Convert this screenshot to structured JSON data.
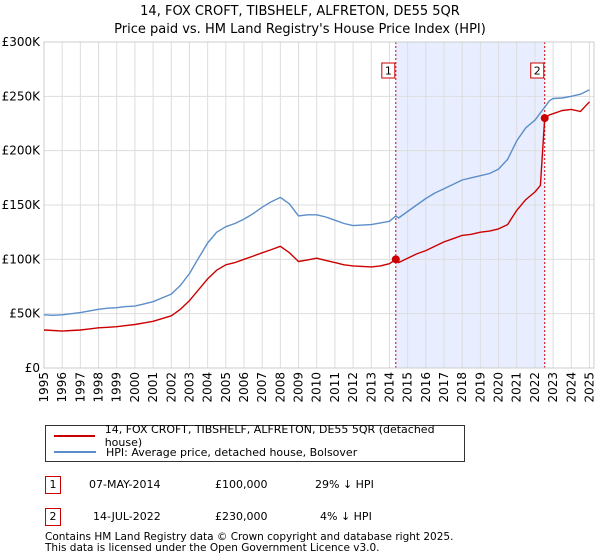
{
  "chart_data": {
    "type": "line",
    "title": "14, FOX CROFT, TIBSHELF, ALFRETON, DE55 5QR",
    "subtitle": "Price paid vs. HM Land Registry's House Price Index (HPI)",
    "xlabel": "",
    "ylabel": "",
    "xlim": [
      1995,
      2025.25
    ],
    "ylim": [
      0,
      300000
    ],
    "y_ticks": [
      0,
      50000,
      100000,
      150000,
      200000,
      250000,
      300000
    ],
    "y_tick_labels": [
      "£0",
      "£50K",
      "£100K",
      "£150K",
      "£200K",
      "£250K",
      "£300K"
    ],
    "x_ticks": [
      1995,
      1996,
      1997,
      1998,
      1999,
      2000,
      2001,
      2002,
      2003,
      2004,
      2005,
      2006,
      2007,
      2008,
      2009,
      2010,
      2011,
      2012,
      2013,
      2014,
      2015,
      2016,
      2017,
      2018,
      2019,
      2020,
      2021,
      2022,
      2023,
      2024,
      2025
    ],
    "x_tick_labels": [
      "1995",
      "1996",
      "1997",
      "1998",
      "1999",
      "2000",
      "2001",
      "2002",
      "2003",
      "2004",
      "2005",
      "2006",
      "2007",
      "2008",
      "2009",
      "2010",
      "2011",
      "2012",
      "2013",
      "2014",
      "2015",
      "2016",
      "2017",
      "2018",
      "2019",
      "2020",
      "2021",
      "2022",
      "2023",
      "2024",
      "2025"
    ],
    "grid": true,
    "shaded_period": [
      2014.35,
      2022.54
    ],
    "series": [
      {
        "name": "14, FOX CROFT, TIBSHELF, ALFRETON, DE55 5QR (detached house)",
        "color": "#cc0000",
        "x": [
          1995,
          1995.5,
          1996,
          1996.5,
          1997,
          1997.5,
          1998,
          1998.5,
          1999,
          1999.5,
          2000,
          2000.5,
          2001,
          2001.5,
          2002,
          2002.5,
          2003,
          2003.5,
          2004,
          2004.5,
          2005,
          2005.5,
          2006,
          2006.5,
          2007,
          2007.5,
          2008,
          2008.5,
          2009,
          2009.5,
          2010,
          2010.5,
          2011,
          2011.5,
          2012,
          2012.5,
          2013,
          2013.5,
          2014,
          2014.35,
          2014.5,
          2015,
          2015.5,
          2016,
          2016.5,
          2017,
          2017.5,
          2018,
          2018.5,
          2019,
          2019.5,
          2020,
          2020.5,
          2021,
          2021.5,
          2022,
          2022.3,
          2022.54,
          2022.8,
          2023,
          2023.5,
          2024,
          2024.5,
          2025
        ],
        "y": [
          35000,
          34500,
          34000,
          34500,
          35000,
          36000,
          37000,
          37500,
          38000,
          39000,
          40000,
          41500,
          43000,
          45500,
          48000,
          54000,
          62000,
          72000,
          82000,
          90000,
          95000,
          97000,
          100000,
          103000,
          106000,
          109000,
          112000,
          106000,
          98000,
          99500,
          101000,
          99000,
          97000,
          95000,
          94000,
          93500,
          93000,
          94000,
          96000,
          100000,
          97000,
          101000,
          105000,
          108000,
          112000,
          116000,
          119000,
          122000,
          123000,
          125000,
          126000,
          128000,
          132000,
          145000,
          155000,
          162000,
          168000,
          230000,
          233000,
          234000,
          237000,
          238000,
          236000,
          245000
        ]
      },
      {
        "name": "HPI: Average price, detached house, Bolsover",
        "color": "#5b8ec9",
        "x": [
          1995,
          1995.5,
          1996,
          1996.5,
          1997,
          1997.5,
          1998,
          1998.5,
          1999,
          1999.5,
          2000,
          2000.5,
          2001,
          2001.5,
          2002,
          2002.5,
          2003,
          2003.5,
          2004,
          2004.5,
          2005,
          2005.5,
          2006,
          2006.5,
          2007,
          2007.5,
          2008,
          2008.5,
          2009,
          2009.5,
          2010,
          2010.5,
          2011,
          2011.5,
          2012,
          2012.5,
          2013,
          2013.5,
          2014,
          2014.35,
          2014.5,
          2015,
          2015.5,
          2016,
          2016.5,
          2017,
          2017.5,
          2018,
          2018.5,
          2019,
          2019.5,
          2020,
          2020.5,
          2021,
          2021.5,
          2022,
          2022.54,
          2022.8,
          2023,
          2023.5,
          2024,
          2024.5,
          2025
        ],
        "y": [
          49000,
          48500,
          49000,
          50000,
          51000,
          52500,
          54000,
          55000,
          55500,
          56500,
          57000,
          59000,
          61000,
          64500,
          68000,
          76000,
          87000,
          101000,
          115000,
          125000,
          130000,
          133000,
          137000,
          142000,
          148000,
          153000,
          157000,
          151000,
          140000,
          141000,
          141000,
          139000,
          136000,
          133000,
          131000,
          131500,
          132000,
          133500,
          135000,
          140000,
          138000,
          144000,
          150000,
          156000,
          161000,
          165000,
          169000,
          173000,
          175000,
          177000,
          179000,
          183000,
          192000,
          209000,
          221000,
          228000,
          240000,
          246000,
          248000,
          248500,
          250000,
          252000,
          256000
        ]
      }
    ],
    "markers": [
      {
        "label": "1",
        "x": 2014.35,
        "y": 100000
      },
      {
        "label": "2",
        "x": 2022.54,
        "y": 230000
      }
    ]
  },
  "legend": {
    "property_label": "14, FOX CROFT, TIBSHELF, ALFRETON, DE55 5QR (detached house)",
    "hpi_label": "HPI: Average price, detached house, Bolsover"
  },
  "sales": [
    {
      "num": "1",
      "date": "07-MAY-2014",
      "price": "£100,000",
      "hpi": "29% ↓ HPI"
    },
    {
      "num": "2",
      "date": "14-JUL-2022",
      "price": "£230,000",
      "hpi": "4% ↓ HPI"
    }
  ],
  "footer": {
    "line1": "Contains HM Land Registry data © Crown copyright and database right 2025.",
    "line2": "This data is licensed under the Open Government Licence v3.0."
  },
  "colors": {
    "property": "#cc0000",
    "hpi": "#5b8ec9",
    "shade": "#e8eeff",
    "grid": "#dddddd"
  }
}
